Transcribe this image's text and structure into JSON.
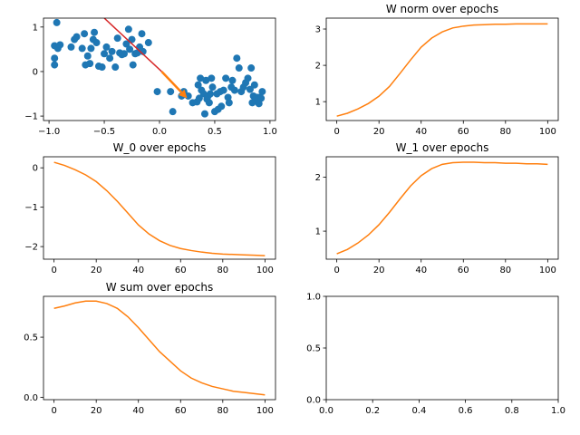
{
  "chart_data": [
    {
      "id": "scatter",
      "type": "scatter",
      "title": "",
      "xlim": [
        -1.05,
        1.05
      ],
      "ylim": [
        -1.1,
        1.2
      ],
      "xticks": [
        -1.0,
        -0.5,
        0.0,
        0.5,
        1.0
      ],
      "xtick_labels": [
        "−1.0",
        "−0.5",
        "0.0",
        "0.5",
        "1.0"
      ],
      "yticks": [
        -1,
        0,
        1
      ],
      "ytick_labels": [
        "−1",
        "0",
        "1"
      ],
      "point_color": "#1f77b4",
      "points": [
        [
          -0.93,
          1.1
        ],
        [
          -0.95,
          0.58
        ],
        [
          -0.92,
          0.52
        ],
        [
          -0.9,
          0.6
        ],
        [
          -0.95,
          0.3
        ],
        [
          -0.95,
          0.15
        ],
        [
          -0.8,
          0.55
        ],
        [
          -0.77,
          0.72
        ],
        [
          -0.75,
          0.78
        ],
        [
          -0.7,
          0.52
        ],
        [
          -0.68,
          0.85
        ],
        [
          -0.67,
          0.15
        ],
        [
          -0.65,
          0.35
        ],
        [
          -0.63,
          0.18
        ],
        [
          -0.62,
          0.52
        ],
        [
          -0.6,
          0.72
        ],
        [
          -0.59,
          0.88
        ],
        [
          -0.57,
          0.65
        ],
        [
          -0.55,
          0.12
        ],
        [
          -0.52,
          0.1
        ],
        [
          -0.5,
          0.4
        ],
        [
          -0.48,
          0.55
        ],
        [
          -0.45,
          0.3
        ],
        [
          -0.43,
          0.45
        ],
        [
          -0.4,
          0.1
        ],
        [
          -0.38,
          0.75
        ],
        [
          -0.36,
          0.42
        ],
        [
          -0.34,
          0.38
        ],
        [
          -0.32,
          0.4
        ],
        [
          -0.3,
          0.62
        ],
        [
          -0.28,
          0.95
        ],
        [
          -0.27,
          0.5
        ],
        [
          -0.25,
          0.72
        ],
        [
          -0.24,
          0.15
        ],
        [
          -0.22,
          0.4
        ],
        [
          -0.2,
          0.42
        ],
        [
          -0.18,
          0.55
        ],
        [
          -0.16,
          0.85
        ],
        [
          -0.15,
          0.45
        ],
        [
          -0.1,
          0.65
        ],
        [
          -0.02,
          -0.45
        ],
        [
          0.1,
          -0.45
        ],
        [
          0.12,
          -0.9
        ],
        [
          0.2,
          -0.55
        ],
        [
          0.22,
          -0.45
        ],
        [
          0.26,
          -0.55
        ],
        [
          0.3,
          -0.7
        ],
        [
          0.34,
          -0.68
        ],
        [
          0.35,
          -0.3
        ],
        [
          0.36,
          -0.6
        ],
        [
          0.37,
          -0.15
        ],
        [
          0.38,
          -0.42
        ],
        [
          0.4,
          -0.5
        ],
        [
          0.41,
          -0.95
        ],
        [
          0.42,
          -0.2
        ],
        [
          0.43,
          -0.62
        ],
        [
          0.44,
          -0.55
        ],
        [
          0.45,
          -0.7
        ],
        [
          0.46,
          -0.5
        ],
        [
          0.47,
          -0.15
        ],
        [
          0.48,
          -0.35
        ],
        [
          0.5,
          -0.9
        ],
        [
          0.52,
          -0.5
        ],
        [
          0.53,
          -0.85
        ],
        [
          0.55,
          -0.45
        ],
        [
          0.56,
          -0.78
        ],
        [
          0.58,
          -0.42
        ],
        [
          0.6,
          -0.15
        ],
        [
          0.62,
          -0.58
        ],
        [
          0.63,
          -0.7
        ],
        [
          0.65,
          -0.35
        ],
        [
          0.66,
          -0.2
        ],
        [
          0.68,
          -0.42
        ],
        [
          0.7,
          0.3
        ],
        [
          0.72,
          0.08
        ],
        [
          0.74,
          -0.45
        ],
        [
          0.76,
          -0.35
        ],
        [
          0.78,
          -0.25
        ],
        [
          0.8,
          -0.15
        ],
        [
          0.82,
          -0.4
        ],
        [
          0.83,
          0.08
        ],
        [
          0.84,
          -0.7
        ],
        [
          0.85,
          -0.55
        ],
        [
          0.86,
          -0.3
        ],
        [
          0.87,
          -0.62
        ],
        [
          0.88,
          -0.58
        ],
        [
          0.9,
          -0.72
        ],
        [
          0.9,
          -0.58
        ],
        [
          0.92,
          -0.6
        ],
        [
          0.93,
          -0.45
        ]
      ],
      "line": {
        "x": [
          -0.5,
          0.02
        ],
        "y": [
          1.2,
          0.0
        ],
        "color": "#d62728"
      },
      "arrow": {
        "x": [
          0.02,
          0.25
        ],
        "y": [
          0.0,
          -0.6
        ],
        "color": "#ff7f0e"
      }
    },
    {
      "id": "w-norm",
      "type": "line",
      "title": "W norm over epochs",
      "xlim": [
        -5,
        105
      ],
      "ylim": [
        0.48,
        3.3
      ],
      "xticks": [
        0,
        20,
        40,
        60,
        80,
        100
      ],
      "xtick_labels": [
        "0",
        "20",
        "40",
        "60",
        "80",
        "100"
      ],
      "yticks": [
        1,
        2,
        3
      ],
      "ytick_labels": [
        "1",
        "2",
        "3"
      ],
      "series": [
        {
          "color": "#ff7f0e",
          "x": [
            0,
            5,
            10,
            15,
            20,
            25,
            30,
            35,
            40,
            45,
            50,
            55,
            60,
            65,
            70,
            75,
            80,
            85,
            90,
            95,
            100
          ],
          "y": [
            0.6,
            0.68,
            0.8,
            0.95,
            1.15,
            1.42,
            1.78,
            2.15,
            2.5,
            2.75,
            2.92,
            3.03,
            3.08,
            3.11,
            3.12,
            3.13,
            3.13,
            3.14,
            3.14,
            3.14,
            3.14
          ]
        }
      ]
    },
    {
      "id": "w0",
      "type": "line",
      "title": "W_0 over epochs",
      "xlim": [
        -5,
        105
      ],
      "ylim": [
        -2.32,
        0.28
      ],
      "xticks": [
        0,
        20,
        40,
        60,
        80,
        100
      ],
      "xtick_labels": [
        "0",
        "20",
        "40",
        "60",
        "80",
        "100"
      ],
      "yticks": [
        -2,
        -1,
        0
      ],
      "ytick_labels": [
        "−2",
        "−1",
        "0"
      ],
      "series": [
        {
          "color": "#ff7f0e",
          "x": [
            0,
            5,
            10,
            15,
            20,
            25,
            30,
            35,
            40,
            45,
            50,
            55,
            60,
            65,
            70,
            75,
            80,
            85,
            90,
            95,
            100
          ],
          "y": [
            0.14,
            0.06,
            -0.05,
            -0.18,
            -0.35,
            -0.58,
            -0.85,
            -1.15,
            -1.45,
            -1.68,
            -1.85,
            -1.97,
            -2.05,
            -2.1,
            -2.14,
            -2.17,
            -2.19,
            -2.2,
            -2.21,
            -2.22,
            -2.23
          ]
        }
      ]
    },
    {
      "id": "w1",
      "type": "line",
      "title": "W_1 over epochs",
      "xlim": [
        -5,
        105
      ],
      "ylim": [
        0.48,
        2.38
      ],
      "xticks": [
        0,
        20,
        40,
        60,
        80,
        100
      ],
      "xtick_labels": [
        "0",
        "20",
        "40",
        "60",
        "80",
        "100"
      ],
      "yticks": [
        1,
        2
      ],
      "ytick_labels": [
        "1",
        "2"
      ],
      "series": [
        {
          "color": "#ff7f0e",
          "x": [
            0,
            5,
            10,
            15,
            20,
            25,
            30,
            35,
            40,
            45,
            50,
            55,
            60,
            65,
            70,
            75,
            80,
            85,
            90,
            95,
            100
          ],
          "y": [
            0.58,
            0.66,
            0.78,
            0.93,
            1.12,
            1.35,
            1.6,
            1.84,
            2.03,
            2.16,
            2.24,
            2.27,
            2.28,
            2.28,
            2.27,
            2.27,
            2.26,
            2.26,
            2.25,
            2.25,
            2.24
          ]
        }
      ]
    },
    {
      "id": "w-sum",
      "type": "line",
      "title": "W sum over epochs",
      "xlim": [
        -5,
        105
      ],
      "ylim": [
        -0.02,
        0.84
      ],
      "xticks": [
        0,
        20,
        40,
        60,
        80,
        100
      ],
      "xtick_labels": [
        "0",
        "20",
        "40",
        "60",
        "80",
        "100"
      ],
      "yticks": [
        0.0,
        0.5
      ],
      "ytick_labels": [
        "0.0",
        "0.5"
      ],
      "series": [
        {
          "color": "#ff7f0e",
          "x": [
            0,
            5,
            10,
            15,
            20,
            25,
            30,
            35,
            40,
            45,
            50,
            55,
            60,
            65,
            70,
            75,
            80,
            85,
            90,
            95,
            100
          ],
          "y": [
            0.74,
            0.76,
            0.785,
            0.8,
            0.8,
            0.78,
            0.74,
            0.67,
            0.58,
            0.48,
            0.38,
            0.3,
            0.22,
            0.16,
            0.12,
            0.09,
            0.07,
            0.05,
            0.04,
            0.03,
            0.02
          ]
        }
      ]
    },
    {
      "id": "empty",
      "type": "line",
      "title": "",
      "xlim": [
        0,
        1
      ],
      "ylim": [
        0,
        1
      ],
      "xticks": [
        0.0,
        0.2,
        0.4,
        0.6,
        0.8,
        1.0
      ],
      "xtick_labels": [
        "0.0",
        "0.2",
        "0.4",
        "0.6",
        "0.8",
        "1.0"
      ],
      "yticks": [
        0.0,
        0.5,
        1.0
      ],
      "ytick_labels": [
        "0.0",
        "0.5",
        "1.0"
      ],
      "series": []
    }
  ]
}
